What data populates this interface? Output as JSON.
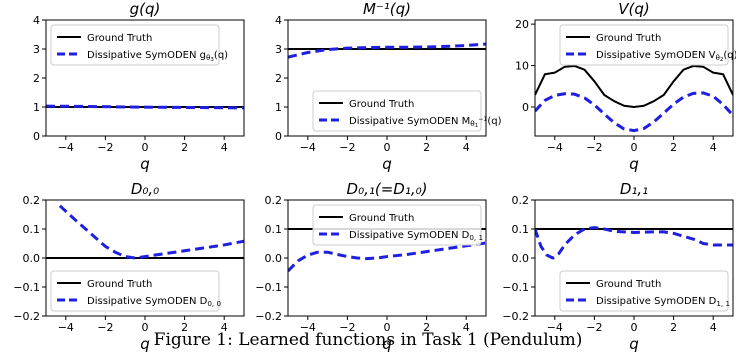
{
  "caption": "Figure 1: Learned functions in Task 1 (Pendulum)",
  "chart_data": [
    {
      "id": "g",
      "type": "line",
      "title": "g(q)",
      "xlabel": "q",
      "ylabel": "",
      "xlim": [
        -5,
        5
      ],
      "ylim": [
        0,
        4
      ],
      "xticks": [
        -4,
        -2,
        0,
        2,
        4
      ],
      "xtick_labels": [
        "−4",
        "−2",
        "0",
        "2",
        "4"
      ],
      "yticks": [
        0,
        1,
        2,
        3,
        4
      ],
      "ytick_labels": [
        "0",
        "1",
        "2",
        "3",
        "4"
      ],
      "grid": false,
      "legend_position": "top-left",
      "series": [
        {
          "name": "Ground Truth",
          "name_parts": [
            {
              "t": "Ground Truth"
            }
          ],
          "color": "#000000",
          "style": "solid",
          "x": [
            -5,
            5
          ],
          "y": [
            1,
            1
          ]
        },
        {
          "name": "Dissipative SymODEN g_θ3(q)",
          "name_parts": [
            {
              "t": "Dissipative SymODEN g"
            },
            {
              "t": "θ",
              "sub": true
            },
            {
              "t": "3",
              "sub2": true
            },
            {
              "t": "(q)"
            }
          ],
          "color": "#1f1fe0",
          "style": "dashed",
          "x": [
            -5,
            -3,
            -1,
            1,
            3,
            5
          ],
          "y": [
            1.03,
            1.02,
            1.0,
            0.99,
            0.98,
            0.97
          ]
        }
      ]
    },
    {
      "id": "minv",
      "type": "line",
      "title": "M⁻¹(q)",
      "xlabel": "q",
      "ylabel": "",
      "xlim": [
        -5,
        5
      ],
      "ylim": [
        0,
        4
      ],
      "xticks": [
        -4,
        -2,
        0,
        2,
        4
      ],
      "xtick_labels": [
        "−4",
        "−2",
        "0",
        "2",
        "4"
      ],
      "yticks": [
        0,
        1,
        2,
        3,
        4
      ],
      "ytick_labels": [
        "0",
        "1",
        "2",
        "3",
        "4"
      ],
      "grid": false,
      "legend_position": "bottom-right",
      "series": [
        {
          "name": "Ground Truth",
          "name_parts": [
            {
              "t": "Ground Truth"
            }
          ],
          "color": "#000000",
          "style": "solid",
          "x": [
            -5,
            5
          ],
          "y": [
            3,
            3
          ]
        },
        {
          "name": "Dissipative SymODEN M⁻¹_θ1(q)",
          "name_parts": [
            {
              "t": "Dissipative SymODEN M"
            },
            {
              "t": "θ",
              "sub": true
            },
            {
              "t": "1",
              "sub2": true
            },
            {
              "t": "−1",
              "sup": true
            },
            {
              "t": "(q)"
            }
          ],
          "color": "#1f1fe0",
          "style": "dashed",
          "x": [
            -5,
            -4,
            -3,
            -2,
            -1,
            0,
            1,
            2,
            3,
            4,
            5
          ],
          "y": [
            2.72,
            2.88,
            2.98,
            3.03,
            3.05,
            3.06,
            3.06,
            3.07,
            3.09,
            3.12,
            3.17
          ]
        }
      ]
    },
    {
      "id": "v",
      "type": "line",
      "title": "V(q)",
      "xlabel": "q",
      "ylabel": "",
      "xlim": [
        -5,
        5
      ],
      "ylim": [
        -7,
        21
      ],
      "xticks": [
        -4,
        -2,
        0,
        2,
        4
      ],
      "xtick_labels": [
        "−4",
        "−2",
        "0",
        "2",
        "4"
      ],
      "yticks": [
        0,
        10,
        20
      ],
      "ytick_labels": [
        "0",
        "10",
        "20"
      ],
      "grid": false,
      "legend_position": "top-right",
      "series": [
        {
          "name": "Ground Truth",
          "name_parts": [
            {
              "t": "Ground Truth"
            }
          ],
          "color": "#000000",
          "style": "solid",
          "x": [
            -5,
            -4.5,
            -4,
            -3.5,
            -3,
            -2.5,
            -2,
            -1.5,
            -1,
            -0.5,
            0,
            0.5,
            1,
            1.5,
            2,
            2.5,
            3,
            3.5,
            4,
            4.5,
            5
          ],
          "y": [
            2.9,
            7.9,
            8.3,
            9.7,
            9.9,
            9.0,
            6.2,
            2.9,
            1.4,
            0.3,
            0.0,
            0.3,
            1.4,
            2.9,
            6.2,
            9.0,
            9.9,
            9.7,
            8.3,
            7.9,
            2.9
          ]
        },
        {
          "name": "Dissipative SymODEN V_θ2(q)",
          "name_parts": [
            {
              "t": "Dissipative SymODEN V"
            },
            {
              "t": "θ",
              "sub": true
            },
            {
              "t": "2",
              "sub2": true
            },
            {
              "t": "(q)"
            }
          ],
          "color": "#1f1fe0",
          "style": "dashed",
          "x": [
            -5,
            -4.5,
            -4,
            -3.5,
            -3,
            -2.5,
            -2,
            -1.5,
            -1,
            -0.5,
            0,
            0.5,
            1,
            1.5,
            2,
            2.5,
            3,
            3.5,
            4,
            4.5,
            5
          ],
          "y": [
            -1.0,
            1.6,
            2.8,
            3.2,
            3.1,
            2.2,
            0.5,
            -1.7,
            -3.8,
            -5.3,
            -5.7,
            -5.2,
            -3.6,
            -1.5,
            0.7,
            2.4,
            3.3,
            3.4,
            2.6,
            0.6,
            -2.0
          ]
        }
      ]
    },
    {
      "id": "d00",
      "type": "line",
      "title": "D₀,₀",
      "xlabel": "q",
      "ylabel": "",
      "xlim": [
        -5,
        5
      ],
      "ylim": [
        -0.2,
        0.2
      ],
      "xticks": [
        -4,
        -2,
        0,
        2,
        4
      ],
      "xtick_labels": [
        "−4",
        "−2",
        "0",
        "2",
        "4"
      ],
      "yticks": [
        -0.2,
        -0.1,
        0.0,
        0.1,
        0.2
      ],
      "ytick_labels": [
        "−0.2",
        "−0.1",
        "0.0",
        "0.1",
        "0.2"
      ],
      "grid": false,
      "legend_position": "bottom-left",
      "series": [
        {
          "name": "Ground Truth",
          "name_parts": [
            {
              "t": "Ground Truth"
            }
          ],
          "color": "#000000",
          "style": "solid",
          "x": [
            -5,
            5
          ],
          "y": [
            0,
            0
          ]
        },
        {
          "name": "Dissipative SymODEN D_0,0",
          "name_parts": [
            {
              "t": "Dissipative SymODEN D"
            },
            {
              "t": "0, 0",
              "sub": true
            }
          ],
          "color": "#1f1fe0",
          "style": "dashed",
          "x": [
            -4.3,
            -3.5,
            -3,
            -2.5,
            -2,
            -1.5,
            -1,
            -0.5,
            0,
            1,
            2,
            3,
            4,
            5
          ],
          "y": [
            0.18,
            0.13,
            0.1,
            0.07,
            0.04,
            0.02,
            0.005,
            0.0,
            0.005,
            0.015,
            0.025,
            0.035,
            0.045,
            0.058
          ]
        }
      ]
    },
    {
      "id": "d01",
      "type": "line",
      "title": "D₀,₁(=D₁,₀)",
      "xlabel": "q",
      "ylabel": "",
      "xlim": [
        -5,
        5
      ],
      "ylim": [
        -0.2,
        0.2
      ],
      "xticks": [
        -4,
        -2,
        0,
        2,
        4
      ],
      "xtick_labels": [
        "−4",
        "−2",
        "0",
        "2",
        "4"
      ],
      "yticks": [
        -0.2,
        -0.1,
        0.0,
        0.1,
        0.2
      ],
      "ytick_labels": [
        "−0.2",
        "−0.1",
        "0.0",
        "0.1",
        "0.2"
      ],
      "grid": false,
      "legend_position": "top-right",
      "series": [
        {
          "name": "Ground Truth",
          "name_parts": [
            {
              "t": "Ground Truth"
            }
          ],
          "color": "#000000",
          "style": "solid",
          "x": [
            -5,
            5
          ],
          "y": [
            0.1,
            0.1
          ]
        },
        {
          "name": "Dissipative SymODEN D_0,1",
          "name_parts": [
            {
              "t": "Dissipative SymODEN D"
            },
            {
              "t": "0, 1",
              "sub": true
            }
          ],
          "color": "#1f1fe0",
          "style": "dashed",
          "x": [
            -5,
            -4.5,
            -4,
            -3.5,
            -3,
            -2.5,
            -2,
            -1.5,
            -1,
            -0.5,
            0,
            1,
            2,
            3,
            4,
            5
          ],
          "y": [
            -0.045,
            -0.01,
            0.01,
            0.02,
            0.02,
            0.012,
            0.005,
            0.0,
            -0.002,
            0.0,
            0.005,
            0.012,
            0.022,
            0.032,
            0.042,
            0.052
          ]
        }
      ]
    },
    {
      "id": "d11",
      "type": "line",
      "title": "D₁,₁",
      "xlabel": "q",
      "ylabel": "",
      "xlim": [
        -5,
        5
      ],
      "ylim": [
        -0.2,
        0.2
      ],
      "xticks": [
        -4,
        -2,
        0,
        2,
        4
      ],
      "xtick_labels": [
        "−4",
        "−2",
        "0",
        "2",
        "4"
      ],
      "yticks": [
        -0.2,
        -0.1,
        0.0,
        0.1,
        0.2
      ],
      "ytick_labels": [
        "−0.2",
        "−0.1",
        "0.0",
        "0.1",
        "0.2"
      ],
      "grid": false,
      "legend_position": "bottom-right",
      "series": [
        {
          "name": "Ground Truth",
          "name_parts": [
            {
              "t": "Ground Truth"
            }
          ],
          "color": "#000000",
          "style": "solid",
          "x": [
            -5,
            5
          ],
          "y": [
            0.1,
            0.1
          ]
        },
        {
          "name": "Dissipative SymODEN D_1,1",
          "name_parts": [
            {
              "t": "Dissipative SymODEN D"
            },
            {
              "t": "1, 1",
              "sub": true
            }
          ],
          "color": "#1f1fe0",
          "style": "dashed",
          "x": [
            -5,
            -4.7,
            -4.4,
            -4.1,
            -3.8,
            -3.5,
            -3,
            -2.5,
            -2,
            -1.5,
            -1,
            0,
            1,
            1.5,
            2,
            3,
            3.5,
            4,
            5
          ],
          "y": [
            0.1,
            0.04,
            0.01,
            0.0,
            0.015,
            0.045,
            0.08,
            0.1,
            0.105,
            0.1,
            0.092,
            0.088,
            0.09,
            0.09,
            0.085,
            0.065,
            0.05,
            0.045,
            0.045
          ]
        }
      ]
    }
  ]
}
